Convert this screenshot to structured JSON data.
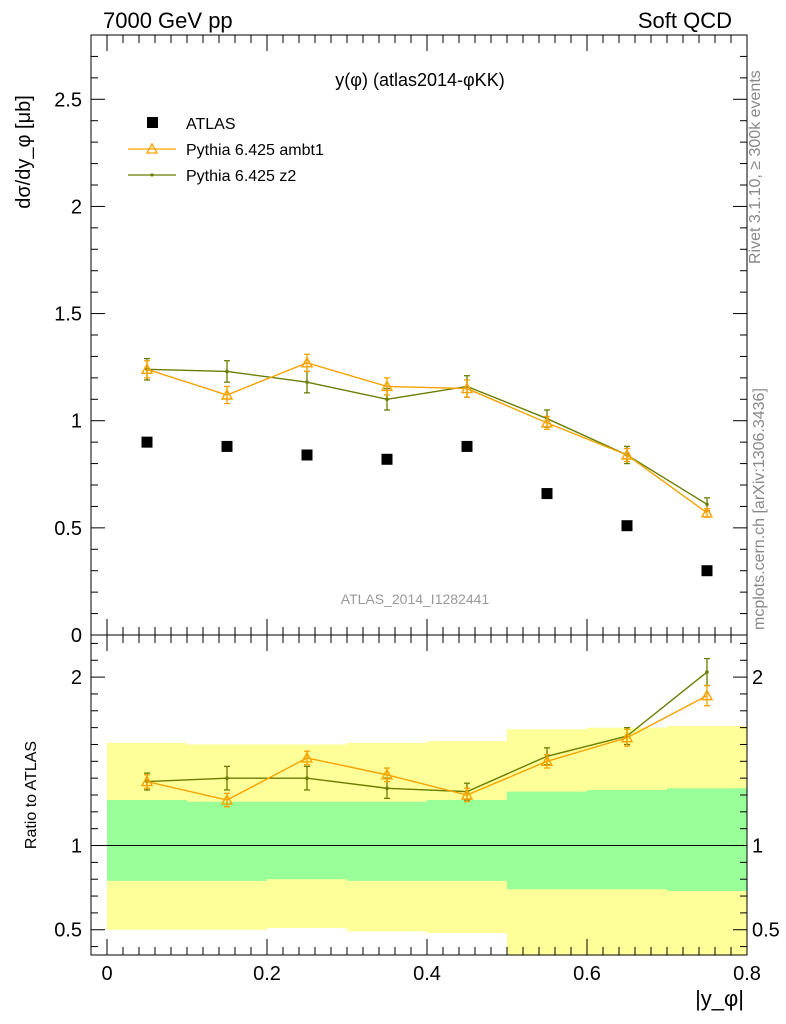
{
  "header": {
    "left": "7000 GeV pp",
    "right": "Soft QCD"
  },
  "side_labels": {
    "rivet": "Rivet 3.1.10, ≥ 300k events",
    "mcplots": "mcplots.cern.ch [arXiv:1306.3436]"
  },
  "chart_data": [
    {
      "type": "scatter",
      "title": "y(φ) (atlas2014-φKK)",
      "ylabel": "dσ/dy_φ [μb]",
      "xlabel": "|y_φ|",
      "watermark": "ATLAS_2014_I1282441",
      "xlim": [
        -0.02,
        0.8
      ],
      "ylim": [
        0,
        2.8
      ],
      "yticks": [
        0,
        0.5,
        1,
        1.5,
        2,
        2.5
      ],
      "ytick_labels": [
        "0",
        "0.5",
        "1",
        "1.5",
        "2",
        "2.5"
      ],
      "legend_position": "top-left",
      "x": [
        0.05,
        0.15,
        0.25,
        0.35,
        0.45,
        0.55,
        0.65,
        0.75
      ],
      "series": [
        {
          "name": "ATLAS",
          "marker": "square",
          "color": "#000000",
          "values": [
            0.9,
            0.88,
            0.84,
            0.82,
            0.88,
            0.66,
            0.51,
            0.3
          ]
        },
        {
          "name": "Pythia 6.425 ambt1",
          "marker": "triangle",
          "color": "#f5a200",
          "values": [
            1.24,
            1.12,
            1.27,
            1.16,
            1.15,
            0.99,
            0.84,
            0.57
          ],
          "errors": [
            0.04,
            0.04,
            0.04,
            0.04,
            0.04,
            0.03,
            0.03,
            0.02
          ]
        },
        {
          "name": "Pythia 6.425 z2",
          "marker": "dot",
          "color": "#6b7d00",
          "values": [
            1.24,
            1.23,
            1.18,
            1.1,
            1.16,
            1.01,
            0.84,
            0.61
          ],
          "errors": [
            0.05,
            0.05,
            0.05,
            0.05,
            0.05,
            0.04,
            0.04,
            0.03
          ]
        }
      ]
    },
    {
      "type": "line",
      "ylabel": "Ratio to ATLAS",
      "xlabel": "|y_φ|",
      "xlim": [
        -0.02,
        0.8
      ],
      "ylim": [
        0.35,
        2.25
      ],
      "yticks": [
        0.5,
        1,
        2
      ],
      "ytick_labels": [
        "0.5",
        "1",
        "2"
      ],
      "xticks": [
        0,
        0.2,
        0.4,
        0.6,
        0.8
      ],
      "xtick_labels": [
        "0",
        "0.2",
        "0.4",
        "0.6",
        "0.8"
      ],
      "bin_edges": [
        0,
        0.1,
        0.2,
        0.3,
        0.4,
        0.5,
        0.6,
        0.7,
        0.8
      ],
      "band_green": {
        "low": [
          0.79,
          0.79,
          0.8,
          0.79,
          0.79,
          0.74,
          0.74,
          0.73
        ],
        "high": [
          1.27,
          1.26,
          1.26,
          1.26,
          1.27,
          1.32,
          1.33,
          1.34
        ]
      },
      "band_yellow": {
        "low": [
          0.5,
          0.5,
          0.51,
          0.49,
          0.48,
          0.35,
          0.35,
          0.35
        ],
        "high": [
          1.61,
          1.6,
          1.6,
          1.61,
          1.62,
          1.69,
          1.7,
          1.71
        ]
      },
      "x": [
        0.05,
        0.15,
        0.25,
        0.35,
        0.45,
        0.55,
        0.65,
        0.75
      ],
      "series": [
        {
          "name": "Pythia 6.425 ambt1",
          "color": "#f5a200",
          "values": [
            1.38,
            1.27,
            1.52,
            1.42,
            1.3,
            1.5,
            1.64,
            1.89
          ],
          "errors": [
            0.04,
            0.04,
            0.04,
            0.04,
            0.04,
            0.04,
            0.05,
            0.06
          ]
        },
        {
          "name": "Pythia 6.425 z2",
          "color": "#6b7d00",
          "values": [
            1.38,
            1.4,
            1.4,
            1.34,
            1.32,
            1.53,
            1.65,
            2.03
          ],
          "errors": [
            0.05,
            0.07,
            0.07,
            0.06,
            0.05,
            0.05,
            0.05,
            0.08
          ]
        }
      ]
    }
  ]
}
